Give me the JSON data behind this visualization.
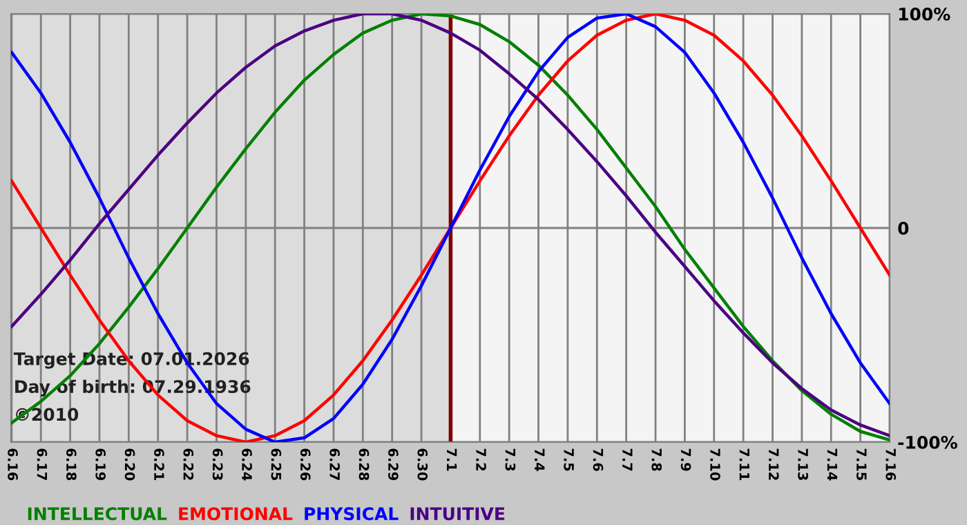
{
  "chart_data": {
    "type": "line",
    "categories": [
      "6.16",
      "6.17",
      "6.18",
      "6.19",
      "6.20",
      "6.21",
      "6.22",
      "6.23",
      "6.24",
      "6.25",
      "6.26",
      "6.27",
      "6.28",
      "6.29",
      "6.30",
      "7.1",
      "7.2",
      "7.3",
      "7.4",
      "7.5",
      "7.6",
      "7.7",
      "7.8",
      "7.9",
      "7.10",
      "7.11",
      "7.12",
      "7.13",
      "7.14",
      "7.15",
      "7.16"
    ],
    "series": [
      {
        "name": "INTELLECTUAL",
        "color": "#008000",
        "values": [
          -91,
          -81,
          -69,
          -54,
          -37,
          -19,
          0,
          19,
          37,
          54,
          69,
          81,
          91,
          97,
          100,
          99,
          95,
          87,
          76,
          62,
          46,
          28,
          10,
          -10,
          -28,
          -46,
          -62,
          -76,
          -87,
          -95,
          -99
        ]
      },
      {
        "name": "EMOTIONAL",
        "color": "#ff0000",
        "values": [
          22,
          0,
          -22,
          -43,
          -62,
          -78,
          -90,
          -97,
          -100,
          -97,
          -90,
          -78,
          -62,
          -43,
          -22,
          0,
          22,
          43,
          62,
          78,
          90,
          97,
          100,
          97,
          90,
          78,
          62,
          43,
          22,
          0,
          -22
        ]
      },
      {
        "name": "PHYSICAL",
        "color": "#0000ff",
        "values": [
          82,
          63,
          40,
          14,
          -14,
          -40,
          -63,
          -82,
          -94,
          -100,
          -98,
          -89,
          -73,
          -52,
          -27,
          0,
          27,
          52,
          73,
          89,
          98,
          100,
          94,
          82,
          63,
          40,
          14,
          -14,
          -40,
          -63,
          -82
        ]
      },
      {
        "name": "INTUITIVE",
        "color": "#4b0082",
        "values": [
          -46,
          -31,
          -15,
          2,
          18,
          34,
          49,
          63,
          75,
          85,
          92,
          97,
          100,
          100,
          97,
          91,
          83,
          72,
          60,
          46,
          31,
          15,
          -2,
          -18,
          -34,
          -49,
          -63,
          -75,
          -85,
          -92,
          -97
        ]
      }
    ],
    "ylim": [
      -100,
      100
    ],
    "yticks": [
      {
        "value": 100,
        "label": "100%"
      },
      0,
      {
        "value": -100,
        "label": "-100%"
      }
    ],
    "grid": true,
    "legend": "bottom",
    "ref_lines": [
      {
        "axis": "x",
        "value": "7.1",
        "color": "#800000"
      }
    ],
    "bands": [
      {
        "axis": "x",
        "from": "6.16",
        "to": "7.1",
        "color": "#dcdcdc"
      }
    ],
    "annotations": [
      "Target Date: 07.01.2026",
      "Day of birth: 07.29.1936",
      "©2010"
    ]
  }
}
